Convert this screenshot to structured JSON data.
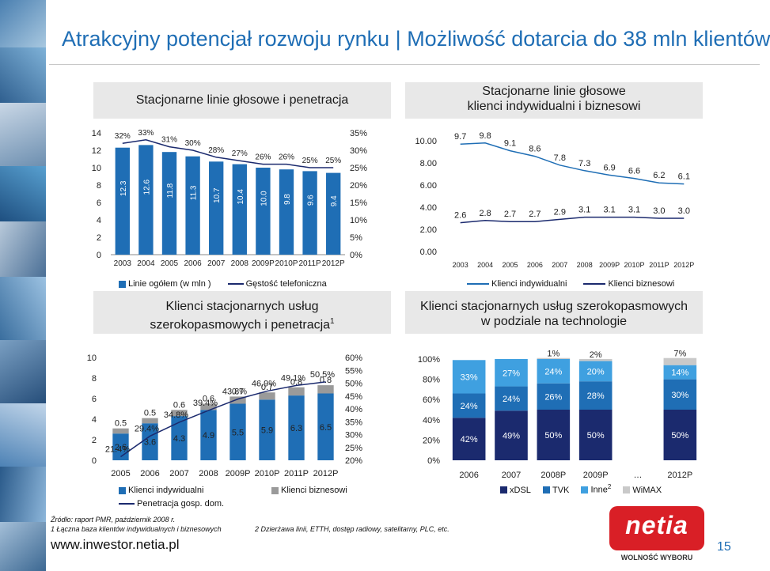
{
  "slide": {
    "title": "Atrakcyjny potencjał rozwoju rynku | Możliwość dotarcia do 38 mln klientów",
    "page_number": "15",
    "website": "www.inwestor.netia.pl",
    "footnotes": [
      "Źródło: raport PMR, październik 2008 r.",
      "1 Łączna baza klientów indywidualnych i biznesowych",
      "2 Dzierżawa linii, ETTH, dostęp radiowy, satelitarny, PLC, etc."
    ],
    "logo": {
      "name": "netia",
      "slogan": "WOLNOŚĆ WYBORU"
    },
    "colors": {
      "title": "#1f6eb5",
      "navy": "#1b2a6e",
      "mid_blue": "#1f6eb5",
      "light_blue": "#3fa0e0",
      "gray": "#9a9a9a",
      "panel_bg": "#e8e8e8"
    }
  },
  "chart_data": [
    {
      "id": "fixed-lines",
      "type": "bar",
      "title": "Stacjonarne linie głosowe i penetracja",
      "categories": [
        "2003",
        "2004",
        "2005",
        "2006",
        "2007",
        "2008",
        "2009P",
        "2010P",
        "2011P",
        "2012P"
      ],
      "series": [
        {
          "name": "Linie ogółem (w mln )",
          "kind": "bar",
          "axis": "left",
          "color": "#1f6eb5",
          "values": [
            12.3,
            12.6,
            11.8,
            11.3,
            10.7,
            10.4,
            10.0,
            9.8,
            9.6,
            9.4
          ],
          "labels": [
            "12.3",
            "12.6",
            "11.8",
            "11.3",
            "10.7",
            "10.4",
            "10.0",
            "9.8",
            "9.6",
            "9.4"
          ]
        },
        {
          "name": "Gęstość telefoniczna",
          "kind": "line",
          "axis": "right",
          "color": "#1b2a6e",
          "values": [
            32,
            33,
            31,
            30,
            28,
            27,
            26,
            26,
            25,
            25
          ],
          "labels": [
            "32%",
            "33%",
            "31%",
            "30%",
            "28%",
            "27%",
            "26%",
            "26%",
            "25%",
            "25%"
          ]
        }
      ],
      "y_left": {
        "min": 0,
        "max": 14,
        "ticks": [
          "0",
          "2",
          "4",
          "6",
          "8",
          "10",
          "12",
          "14"
        ]
      },
      "y_right": {
        "min": 0,
        "max": 35,
        "ticks": [
          "0%",
          "5%",
          "10%",
          "15%",
          "20%",
          "25%",
          "30%",
          "35%"
        ]
      },
      "grid": false,
      "legend": "bottom"
    },
    {
      "id": "fixed-lines-split",
      "type": "line",
      "title": "Stacjonarne linie głosowe\nklienci indywidualni i biznesowi",
      "categories": [
        "2003",
        "2004",
        "2005",
        "2006",
        "2007",
        "2008",
        "2009P",
        "2010P",
        "2011P",
        "2012P"
      ],
      "series": [
        {
          "name": "Klienci indywidualni",
          "color": "#1f6eb5",
          "values": [
            9.7,
            9.8,
            9.1,
            8.6,
            7.8,
            7.3,
            6.9,
            6.6,
            6.2,
            6.1
          ],
          "labels": [
            "9.7",
            "9.8",
            "9.1",
            "8.6",
            "7.8",
            "7.3",
            "6.9",
            "6.6",
            "6.2",
            "6.1"
          ]
        },
        {
          "name": "Klienci biznesowi",
          "color": "#1b2a6e",
          "values": [
            2.6,
            2.8,
            2.7,
            2.7,
            2.9,
            3.1,
            3.1,
            3.1,
            3.0,
            3.0
          ],
          "labels": [
            "2.6",
            "2.8",
            "2.7",
            "2.7",
            "2.9",
            "3.1",
            "3.1",
            "3.1",
            "3.0",
            "3.0"
          ]
        }
      ],
      "y": {
        "min": 0,
        "max": 10,
        "ticks": [
          "0.00",
          "2.00",
          "4.00",
          "6.00",
          "8.00",
          "10.00"
        ]
      },
      "grid": false,
      "legend": "bottom"
    },
    {
      "id": "broadband-clients",
      "type": "bar",
      "title": "Klienci stacjonarnych usług\nszerokopasmowych i penetracja",
      "title_sup": "1",
      "categories": [
        "2005",
        "2006",
        "2007",
        "2008",
        "2009P",
        "2010P",
        "2011P",
        "2012P"
      ],
      "series": [
        {
          "name": "Klienci indywidualni",
          "kind": "bar",
          "stack": "a",
          "color": "#1f6eb5",
          "values": [
            2.6,
            3.6,
            4.3,
            4.9,
            5.5,
            5.9,
            6.3,
            6.5
          ],
          "labels": [
            "2.6",
            "3.6",
            "4.3",
            "4.9",
            "5.5",
            "5.9",
            "6.3",
            "6.5"
          ]
        },
        {
          "name": "Klienci biznesowi",
          "kind": "bar",
          "stack": "a",
          "color": "#9a9a9a",
          "values": [
            0.5,
            0.5,
            0.6,
            0.6,
            0.7,
            0.7,
            0.8,
            0.8
          ],
          "labels": [
            "0.5",
            "0.5",
            "0.6",
            "0.6",
            "0.7",
            "0.7",
            "0.8",
            "0.8"
          ]
        },
        {
          "name": "Penetracja gosp. dom.",
          "kind": "line",
          "axis": "right",
          "color": "#1b2a6e",
          "values": [
            21.4,
            29.4,
            34.8,
            39.4,
            43.8,
            46.9,
            49.1,
            50.5
          ],
          "labels": [
            "21.4%",
            "29.4%",
            "34.8%",
            "39.4%",
            "43.8%",
            "46.9%",
            "49.1%",
            "50.5%"
          ]
        }
      ],
      "y_left": {
        "min": 0,
        "max": 10,
        "ticks": [
          "0",
          "2",
          "4",
          "6",
          "8",
          "10"
        ]
      },
      "y_right": {
        "min": 20,
        "max": 60,
        "ticks": [
          "20%",
          "25%",
          "30%",
          "35%",
          "40%",
          "45%",
          "50%",
          "55%",
          "60%"
        ]
      },
      "grid": false,
      "legend": "bottom"
    },
    {
      "id": "broadband-tech",
      "type": "bar",
      "title": "Klienci stacjonarnych usług szerokopasmowych\nw podziale na technologie",
      "categories": [
        "2006",
        "2007",
        "2008P",
        "2009P",
        "…",
        "2012P"
      ],
      "series": [
        {
          "name": "xDSL",
          "color": "#1b2a6e",
          "values": [
            42,
            49,
            50,
            50,
            null,
            50
          ],
          "labels": [
            "42%",
            "49%",
            "50%",
            "50%",
            "",
            "50%"
          ]
        },
        {
          "name": "TVK",
          "color": "#1f6eb5",
          "values": [
            24,
            24,
            26,
            28,
            null,
            30
          ],
          "labels": [
            "24%",
            "24%",
            "26%",
            "28%",
            "",
            "30%"
          ]
        },
        {
          "name": "Inne",
          "name_sup": "2",
          "color": "#3fa0e0",
          "values": [
            33,
            27,
            24,
            20,
            null,
            14
          ],
          "labels": [
            "33%",
            "27%",
            "24%",
            "20%",
            "",
            "14%"
          ]
        },
        {
          "name": "WiMAX",
          "color": "#c9c9c9",
          "values": [
            0,
            0,
            1,
            2,
            null,
            7
          ],
          "labels": [
            "",
            "",
            "1%",
            "2%",
            "",
            "7%"
          ]
        }
      ],
      "y": {
        "min": 0,
        "max": 100,
        "ticks": [
          "0%",
          "20%",
          "40%",
          "60%",
          "80%",
          "100%"
        ]
      },
      "stacked": true,
      "grid": false,
      "legend": "bottom"
    }
  ]
}
